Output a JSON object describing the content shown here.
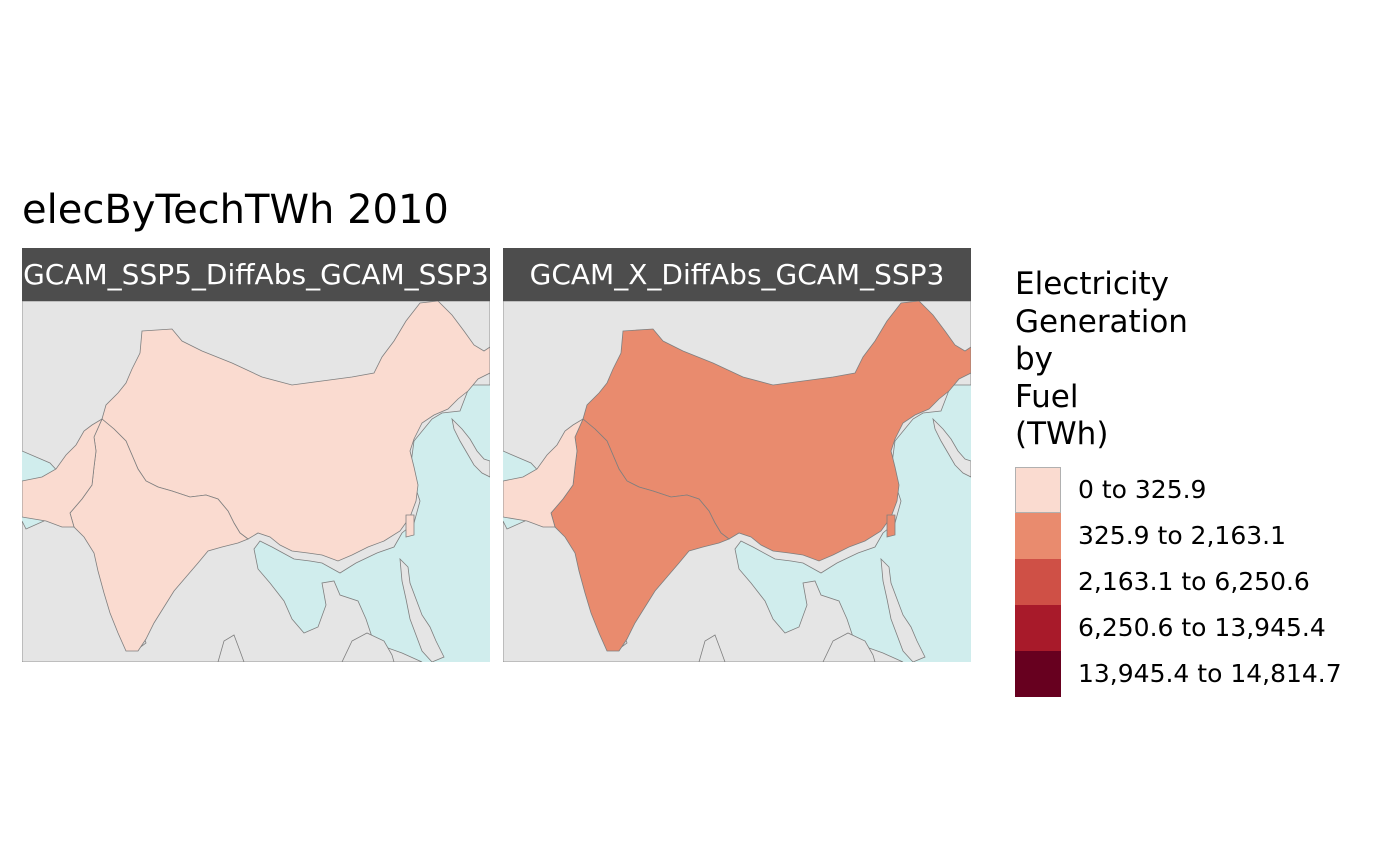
{
  "title": "elecByTechTWh 2010",
  "colors": {
    "water": "#d0eded",
    "land": "#e5e5e5",
    "border": "#7f7f7f",
    "strip": "#4d4d4d"
  },
  "panels": [
    {
      "strip_label": "GCAM_SSP5_DiffAbs_GCAM_SSP3",
      "regions": [
        {
          "name": "China",
          "class": "0 to 325.9"
        },
        {
          "name": "India",
          "class": "0 to 325.9"
        },
        {
          "name": "Pakistan",
          "class": "0 to 325.9"
        },
        {
          "name": "Taiwan",
          "class": "0 to 325.9"
        }
      ]
    },
    {
      "strip_label": "GCAM_X_DiffAbs_GCAM_SSP3",
      "regions": [
        {
          "name": "China",
          "class": "325.9 to 2,163.1"
        },
        {
          "name": "India",
          "class": "325.9 to 2,163.1"
        },
        {
          "name": "Pakistan",
          "class": "0 to 325.9"
        },
        {
          "name": "Taiwan",
          "class": "325.9 to 2,163.1"
        }
      ]
    }
  ],
  "legend": {
    "title_lines": [
      "Electricity",
      "Generation",
      "by",
      "Fuel",
      "(TWh)"
    ],
    "keys": [
      {
        "label": "0 to 325.9",
        "color": "#fadbd0"
      },
      {
        "label": "325.9 to 2,163.1",
        "color": "#e98b6e"
      },
      {
        "label": "2,163.1 to 6,250.6",
        "color": "#cf5046"
      },
      {
        "label": "6,250.6 to 13,945.4",
        "color": "#a81a2a"
      },
      {
        "label": "13,945.4 to 14,814.7",
        "color": "#67001f"
      }
    ]
  }
}
